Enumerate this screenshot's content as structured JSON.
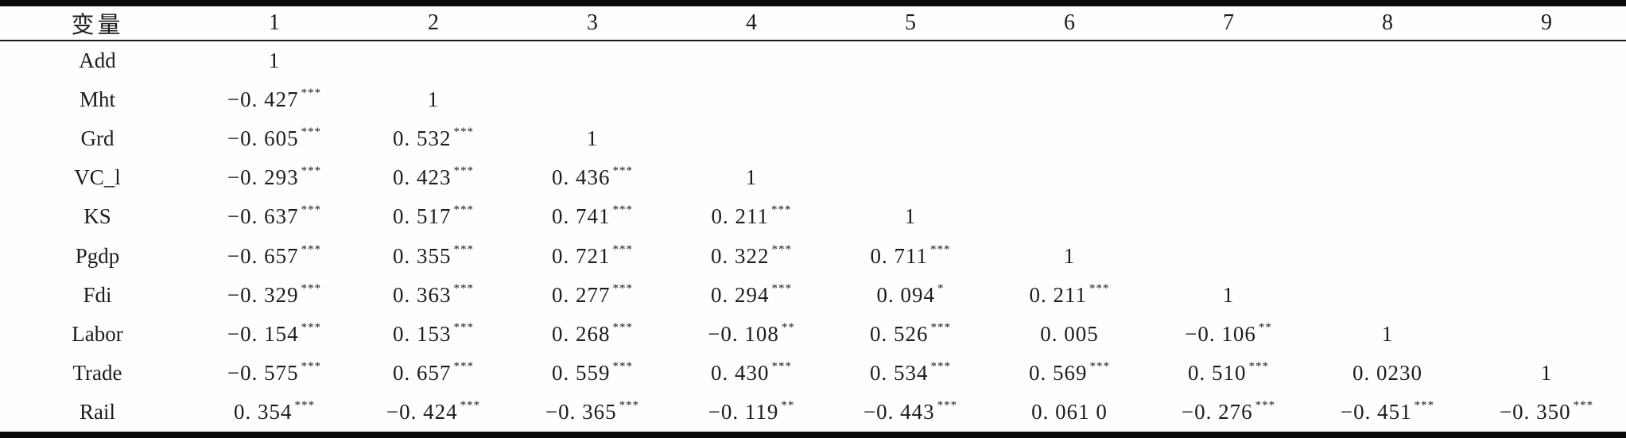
{
  "table": {
    "header": [
      "变量",
      "1",
      "2",
      "3",
      "4",
      "5",
      "6",
      "7",
      "8",
      "9"
    ],
    "rows": [
      {
        "label": "Add",
        "cells": [
          {
            "v": "1",
            "s": ""
          },
          {
            "v": "",
            "s": ""
          },
          {
            "v": "",
            "s": ""
          },
          {
            "v": "",
            "s": ""
          },
          {
            "v": "",
            "s": ""
          },
          {
            "v": "",
            "s": ""
          },
          {
            "v": "",
            "s": ""
          },
          {
            "v": "",
            "s": ""
          },
          {
            "v": "",
            "s": ""
          }
        ]
      },
      {
        "label": "Mht",
        "cells": [
          {
            "v": "−0. 427",
            "s": "***"
          },
          {
            "v": "1",
            "s": ""
          },
          {
            "v": "",
            "s": ""
          },
          {
            "v": "",
            "s": ""
          },
          {
            "v": "",
            "s": ""
          },
          {
            "v": "",
            "s": ""
          },
          {
            "v": "",
            "s": ""
          },
          {
            "v": "",
            "s": ""
          },
          {
            "v": "",
            "s": ""
          }
        ]
      },
      {
        "label": "Grd",
        "cells": [
          {
            "v": "−0. 605",
            "s": "***"
          },
          {
            "v": "0. 532",
            "s": "***"
          },
          {
            "v": "1",
            "s": ""
          },
          {
            "v": "",
            "s": ""
          },
          {
            "v": "",
            "s": ""
          },
          {
            "v": "",
            "s": ""
          },
          {
            "v": "",
            "s": ""
          },
          {
            "v": "",
            "s": ""
          },
          {
            "v": "",
            "s": ""
          }
        ]
      },
      {
        "label": "VC_l",
        "cells": [
          {
            "v": "−0. 293",
            "s": "***"
          },
          {
            "v": "0. 423",
            "s": "***"
          },
          {
            "v": "0. 436",
            "s": "***"
          },
          {
            "v": "1",
            "s": ""
          },
          {
            "v": "",
            "s": ""
          },
          {
            "v": "",
            "s": ""
          },
          {
            "v": "",
            "s": ""
          },
          {
            "v": "",
            "s": ""
          },
          {
            "v": "",
            "s": ""
          }
        ]
      },
      {
        "label": "KS",
        "cells": [
          {
            "v": "−0. 637",
            "s": "***"
          },
          {
            "v": "0. 517",
            "s": "***"
          },
          {
            "v": "0. 741",
            "s": "***"
          },
          {
            "v": "0. 211",
            "s": "***"
          },
          {
            "v": "1",
            "s": ""
          },
          {
            "v": "",
            "s": ""
          },
          {
            "v": "",
            "s": ""
          },
          {
            "v": "",
            "s": ""
          },
          {
            "v": "",
            "s": ""
          }
        ]
      },
      {
        "label": "Pgdp",
        "cells": [
          {
            "v": "−0. 657",
            "s": "***"
          },
          {
            "v": "0. 355",
            "s": "***"
          },
          {
            "v": "0. 721",
            "s": "***"
          },
          {
            "v": "0. 322",
            "s": "***"
          },
          {
            "v": "0. 711",
            "s": "***"
          },
          {
            "v": "1",
            "s": ""
          },
          {
            "v": "",
            "s": ""
          },
          {
            "v": "",
            "s": ""
          },
          {
            "v": "",
            "s": ""
          }
        ]
      },
      {
        "label": "Fdi",
        "cells": [
          {
            "v": "−0. 329",
            "s": "***"
          },
          {
            "v": "0. 363",
            "s": "***"
          },
          {
            "v": "0. 277",
            "s": "***"
          },
          {
            "v": "0. 294",
            "s": "***"
          },
          {
            "v": "0. 094",
            "s": "*"
          },
          {
            "v": "0. 211",
            "s": "***"
          },
          {
            "v": "1",
            "s": ""
          },
          {
            "v": "",
            "s": ""
          },
          {
            "v": "",
            "s": ""
          }
        ]
      },
      {
        "label": "Labor",
        "cells": [
          {
            "v": "−0. 154",
            "s": "***"
          },
          {
            "v": "0. 153",
            "s": "***"
          },
          {
            "v": "0. 268",
            "s": "***"
          },
          {
            "v": "−0. 108",
            "s": "**"
          },
          {
            "v": "0. 526",
            "s": "***"
          },
          {
            "v": "0. 005",
            "s": ""
          },
          {
            "v": "−0. 106",
            "s": "**"
          },
          {
            "v": "1",
            "s": ""
          },
          {
            "v": "",
            "s": ""
          }
        ]
      },
      {
        "label": "Trade",
        "cells": [
          {
            "v": "−0. 575",
            "s": "***"
          },
          {
            "v": "0. 657",
            "s": "***"
          },
          {
            "v": "0. 559",
            "s": "***"
          },
          {
            "v": "0. 430",
            "s": "***"
          },
          {
            "v": "0. 534",
            "s": "***"
          },
          {
            "v": "0. 569",
            "s": "***"
          },
          {
            "v": "0. 510",
            "s": "***"
          },
          {
            "v": "0. 0230",
            "s": ""
          },
          {
            "v": "1",
            "s": ""
          }
        ]
      },
      {
        "label": "Rail",
        "cells": [
          {
            "v": "0. 354",
            "s": "***"
          },
          {
            "v": "−0. 424",
            "s": "***"
          },
          {
            "v": "−0. 365",
            "s": "***"
          },
          {
            "v": "−0. 119",
            "s": "**"
          },
          {
            "v": "−0. 443",
            "s": "***"
          },
          {
            "v": "0. 061 0",
            "s": ""
          },
          {
            "v": "−0. 276",
            "s": "***"
          },
          {
            "v": "−0. 451",
            "s": "***"
          },
          {
            "v": "−0. 350",
            "s": "***"
          }
        ]
      }
    ]
  },
  "colors": {
    "rule": "#0a0a0a",
    "text": "#1c1c1c",
    "background": "#fefefe"
  }
}
